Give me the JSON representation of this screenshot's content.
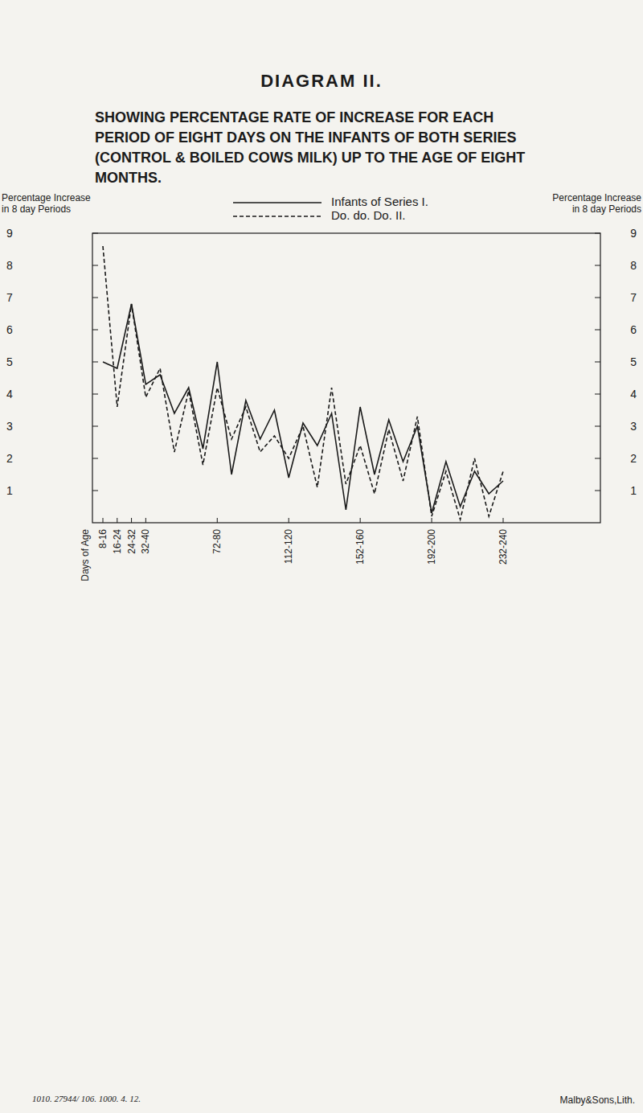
{
  "chart_data": {
    "type": "line",
    "title": "DIAGRAM II.",
    "subtitle": [
      "SHOWING PERCENTAGE RATE OF INCREASE FOR EACH",
      "PERIOD OF EIGHT DAYS ON THE INFANTS OF BOTH SERIES",
      "(CONTROL & BOILED COWS MILK) UP TO THE AGE OF EIGHT",
      "MONTHS."
    ],
    "y_label": [
      "Percentage Increase",
      "in 8 day Periods"
    ],
    "y2_label": [
      "Percentage Increase",
      "in 8 day Periods"
    ],
    "x_label": "Days of Age",
    "annotations": [
      "1010. 27944/ 106. 1000. 4. 12.",
      "Malby&Sons,Lith."
    ],
    "categories": [
      "8-16",
      "16-24",
      "24-32",
      "32-40",
      null,
      null,
      null,
      null,
      "72-80",
      null,
      null,
      null,
      null,
      "112-120",
      null,
      null,
      null,
      null,
      "152-160",
      null,
      null,
      null,
      null,
      "192-200",
      null,
      null,
      null,
      null,
      "232-240"
    ],
    "series": [
      {
        "name": "Infants of Series I.",
        "color": "#1a1a1a",
        "line_style": "solid",
        "values": [
          5.0,
          4.8,
          6.8,
          4.3,
          4.6,
          3.4,
          4.2,
          2.3,
          5.0,
          1.5,
          3.8,
          2.6,
          3.5,
          1.4,
          3.1,
          2.4,
          3.4,
          0.4,
          3.6,
          1.5,
          3.2,
          1.9,
          3.0,
          0.3,
          1.9,
          0.5,
          1.6,
          0.9,
          1.3
        ]
      },
      {
        "name": "Do. do. Do. II.",
        "color": "#1a1a1a",
        "line_style": "dashed",
        "values": [
          8.6,
          3.6,
          6.8,
          3.9,
          4.8,
          2.2,
          4.1,
          1.8,
          4.2,
          2.6,
          3.6,
          2.2,
          2.7,
          2.0,
          3.0,
          1.1,
          4.2,
          1.2,
          2.4,
          0.9,
          2.9,
          1.3,
          3.3,
          0.2,
          1.6,
          0.1,
          2.0,
          0.2,
          1.6
        ]
      }
    ],
    "ylim": [
      0,
      9
    ],
    "yticks": [
      1,
      2,
      3,
      4,
      5,
      6,
      7,
      8,
      9
    ],
    "legend": "top",
    "grid": false
  }
}
